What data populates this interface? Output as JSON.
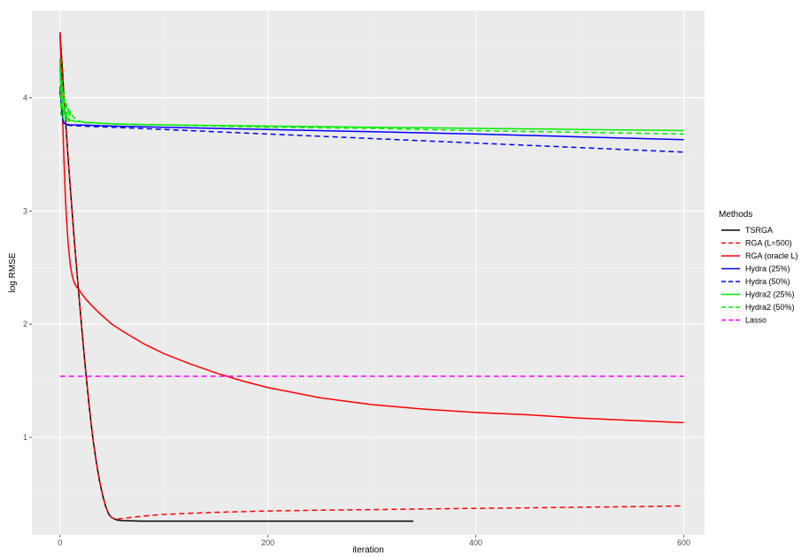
{
  "chart_data": {
    "type": "line",
    "title": "",
    "xlabel": "iteration",
    "ylabel": "log RMSE",
    "xlim": [
      -27,
      620
    ],
    "ylim": [
      0.14,
      4.77
    ],
    "x_ticks": [
      0,
      200,
      400,
      600
    ],
    "y_ticks": [
      1,
      2,
      3,
      4
    ],
    "grid": true,
    "background": "#ebebeb",
    "legend": {
      "title": "Methods",
      "placement": "right"
    },
    "series": [
      {
        "name": "TSRGA",
        "color": "#000000",
        "dash": "solid",
        "x": [
          0,
          2,
          4,
          6,
          8,
          10,
          12,
          14,
          16,
          18,
          20,
          22,
          24,
          26,
          28,
          30,
          32,
          35,
          38,
          41,
          44,
          47,
          50,
          55,
          60,
          70,
          80,
          100,
          150,
          200,
          250,
          300,
          340
        ],
        "y": [
          4.58,
          4.3,
          4.0,
          3.72,
          3.45,
          3.2,
          2.96,
          2.72,
          2.5,
          2.28,
          2.07,
          1.86,
          1.66,
          1.47,
          1.29,
          1.12,
          0.97,
          0.78,
          0.62,
          0.49,
          0.39,
          0.32,
          0.29,
          0.27,
          0.265,
          0.262,
          0.26,
          0.26,
          0.26,
          0.26,
          0.26,
          0.26,
          0.26
        ]
      },
      {
        "name": "RGA (L=500)",
        "color": "#ff0000",
        "dash": "dashed",
        "x": [
          0,
          2,
          4,
          6,
          8,
          10,
          12,
          14,
          16,
          18,
          20,
          22,
          24,
          26,
          28,
          30,
          32,
          35,
          38,
          41,
          44,
          47,
          50,
          53,
          56,
          60,
          70,
          80,
          100,
          150,
          200,
          250,
          300,
          350,
          400,
          450,
          500,
          550,
          600
        ],
        "y": [
          4.58,
          4.3,
          4.0,
          3.72,
          3.45,
          3.2,
          2.96,
          2.72,
          2.5,
          2.28,
          2.07,
          1.86,
          1.66,
          1.47,
          1.29,
          1.12,
          0.97,
          0.78,
          0.62,
          0.49,
          0.39,
          0.32,
          0.29,
          0.28,
          0.28,
          0.285,
          0.295,
          0.305,
          0.32,
          0.338,
          0.35,
          0.357,
          0.362,
          0.368,
          0.373,
          0.378,
          0.383,
          0.388,
          0.395
        ]
      },
      {
        "name": "RGA (oracle L)",
        "color": "#ff0000",
        "dash": "solid",
        "x": [
          0,
          1,
          2,
          3,
          4,
          5,
          6,
          8,
          10,
          12,
          14,
          16,
          18,
          20,
          25,
          30,
          40,
          50,
          60,
          80,
          100,
          125,
          150,
          175,
          200,
          250,
          300,
          350,
          400,
          450,
          500,
          550,
          600
        ],
        "y": [
          4.58,
          4.3,
          4.0,
          3.7,
          3.42,
          3.18,
          2.98,
          2.7,
          2.52,
          2.42,
          2.36,
          2.33,
          2.31,
          2.28,
          2.22,
          2.17,
          2.08,
          2.0,
          1.94,
          1.83,
          1.74,
          1.65,
          1.57,
          1.5,
          1.44,
          1.35,
          1.29,
          1.25,
          1.22,
          1.2,
          1.17,
          1.15,
          1.13
        ]
      },
      {
        "name": "Hydra (25%)",
        "color": "#0000ff",
        "dash": "solid",
        "x": [
          0,
          1,
          2,
          3,
          4,
          5,
          7,
          10,
          20,
          50,
          100,
          200,
          300,
          400,
          500,
          600
        ],
        "y": [
          4.1,
          3.97,
          3.86,
          3.8,
          3.78,
          3.77,
          3.765,
          3.76,
          3.76,
          3.75,
          3.74,
          3.72,
          3.7,
          3.68,
          3.655,
          3.63
        ]
      },
      {
        "name": "Hydra (50%)",
        "color": "#0000ff",
        "dash": "dashed",
        "x": [
          0,
          1,
          2,
          3,
          4,
          5,
          7,
          10,
          20,
          50,
          100,
          200,
          300,
          400,
          500,
          600
        ],
        "y": [
          4.05,
          3.95,
          3.85,
          3.79,
          3.77,
          3.765,
          3.76,
          3.755,
          3.75,
          3.74,
          3.72,
          3.68,
          3.64,
          3.6,
          3.56,
          3.52
        ]
      },
      {
        "name": "Hydra2 (25%)",
        "color": "#00ee00",
        "dash": "solid",
        "x": [
          0,
          1,
          2,
          3,
          4,
          5,
          6,
          7,
          8,
          10,
          12,
          15,
          20,
          25,
          30,
          40,
          50,
          70,
          100,
          200,
          300,
          400,
          500,
          600
        ],
        "y": [
          4.3,
          4.05,
          3.95,
          3.9,
          3.86,
          3.85,
          3.83,
          3.82,
          3.81,
          3.8,
          3.8,
          3.79,
          3.79,
          3.78,
          3.78,
          3.775,
          3.77,
          3.765,
          3.76,
          3.75,
          3.74,
          3.73,
          3.72,
          3.71
        ]
      },
      {
        "name": "Hydra2 (50%)",
        "color": "#00ee00",
        "dash": "dashed",
        "x": [
          0,
          1,
          2,
          3,
          4,
          5,
          6,
          7,
          8,
          9,
          10,
          12,
          14,
          16,
          18,
          20,
          25,
          30,
          40,
          50,
          70,
          100,
          200,
          300,
          400,
          500,
          600
        ],
        "y": [
          4.35,
          3.85,
          4.15,
          3.82,
          4.05,
          3.8,
          3.97,
          3.79,
          3.92,
          3.79,
          3.88,
          3.84,
          3.82,
          3.81,
          3.8,
          3.79,
          3.785,
          3.78,
          3.775,
          3.77,
          3.765,
          3.76,
          3.74,
          3.73,
          3.71,
          3.695,
          3.68
        ]
      },
      {
        "name": "Lasso",
        "color": "#ff00ff",
        "dash": "dashed",
        "x": [
          0,
          600
        ],
        "y": [
          1.54,
          1.54
        ]
      }
    ]
  }
}
